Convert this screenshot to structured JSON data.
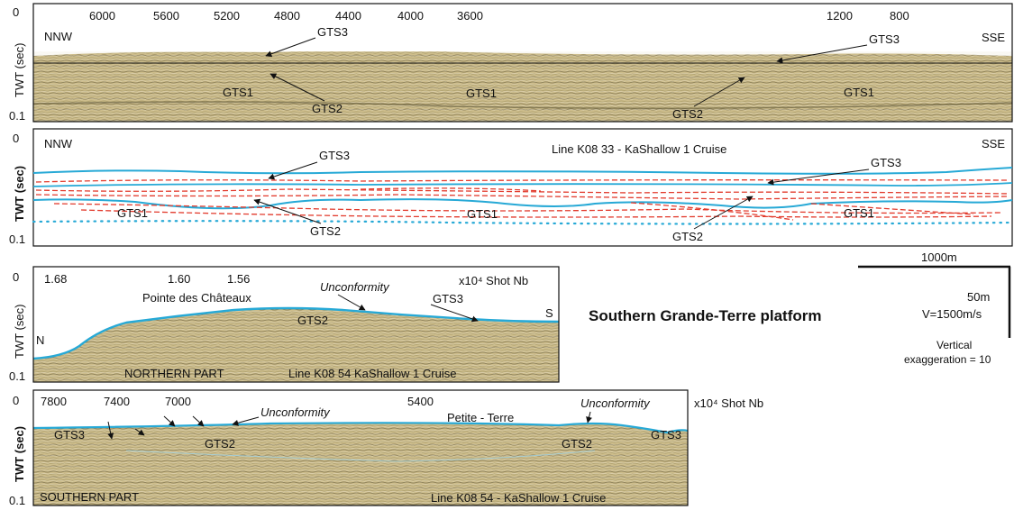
{
  "colors": {
    "seismic_base": "#c9b98a",
    "seismic_dark": "#6e6440",
    "horizon_blue": "#27a9d6",
    "horizon_red": "#e23b2d",
    "frame": "#111111"
  },
  "panels": {
    "p1": {
      "tick_labels": [
        "6000",
        "5600",
        "5200",
        "4800",
        "4400",
        "4000",
        "3600",
        "1200",
        "800"
      ],
      "y_top": "0",
      "y_bottom": "0.1",
      "y_axis": "TWT (sec)",
      "dir_left": "NNW",
      "dir_right": "SSE",
      "labels": {
        "gts3_a": "GTS3",
        "gts3_b": "GTS3",
        "gts1_a": "GTS1",
        "gts1_b": "GTS1",
        "gts1_c": "GTS1",
        "gts2_a": "GTS2",
        "gts2_b": "GTS2"
      }
    },
    "p2": {
      "y_top": "0",
      "y_bottom": "0.1",
      "y_axis": "TWT (sec)",
      "dir_left": "NNW",
      "dir_right": "SSE",
      "title": "Line K08 33 - KaShallow 1 Cruise",
      "labels": {
        "gts3_a": "GTS3",
        "gts3_b": "GTS3",
        "gts1_a": "GTS1",
        "gts1_b": "GTS1",
        "gts1_c": "GTS1",
        "gts2_a": "GTS2",
        "gts2_b": "GTS2"
      }
    },
    "p3": {
      "tick_labels": [
        "1.68",
        "1.60",
        "1.56"
      ],
      "unit": "x10⁴ Shot Nb",
      "y_top": "0",
      "y_bottom": "0.1",
      "y_axis": "TWT (sec)",
      "dir_left": "N",
      "dir_right": "S",
      "place": "Pointe des Châteaux",
      "unconformity": "Unconformity",
      "gts3": "GTS3",
      "gts2": "GTS2",
      "part": "NORTHERN PART",
      "line": "Line K08 54   KaShallow 1 Cruise"
    },
    "p4": {
      "tick_labels": [
        "7800",
        "7400",
        "7000",
        "5400"
      ],
      "unit": "x10⁴ Shot Nb",
      "y_top": "0",
      "y_bottom": "0.1",
      "y_axis": "TWT (sec)",
      "unconformity_a": "Unconformity",
      "unconformity_b": "Unconformity",
      "place": "Petite - Terre",
      "gts3_a": "GTS3",
      "gts3_b": "GTS3",
      "gts2_a": "GTS2",
      "gts2_b": "GTS2",
      "part": "SOUTHERN PART",
      "line": "Line K08 54 - KaShallow 1 Cruise"
    }
  },
  "legend": {
    "title": "Southern Grande-Terre platform",
    "scale_h": "1000m",
    "scale_v1": "50m",
    "scale_v2": "V=1500m/s",
    "exag1": "Vertical",
    "exag2": "exaggeration = 10"
  }
}
